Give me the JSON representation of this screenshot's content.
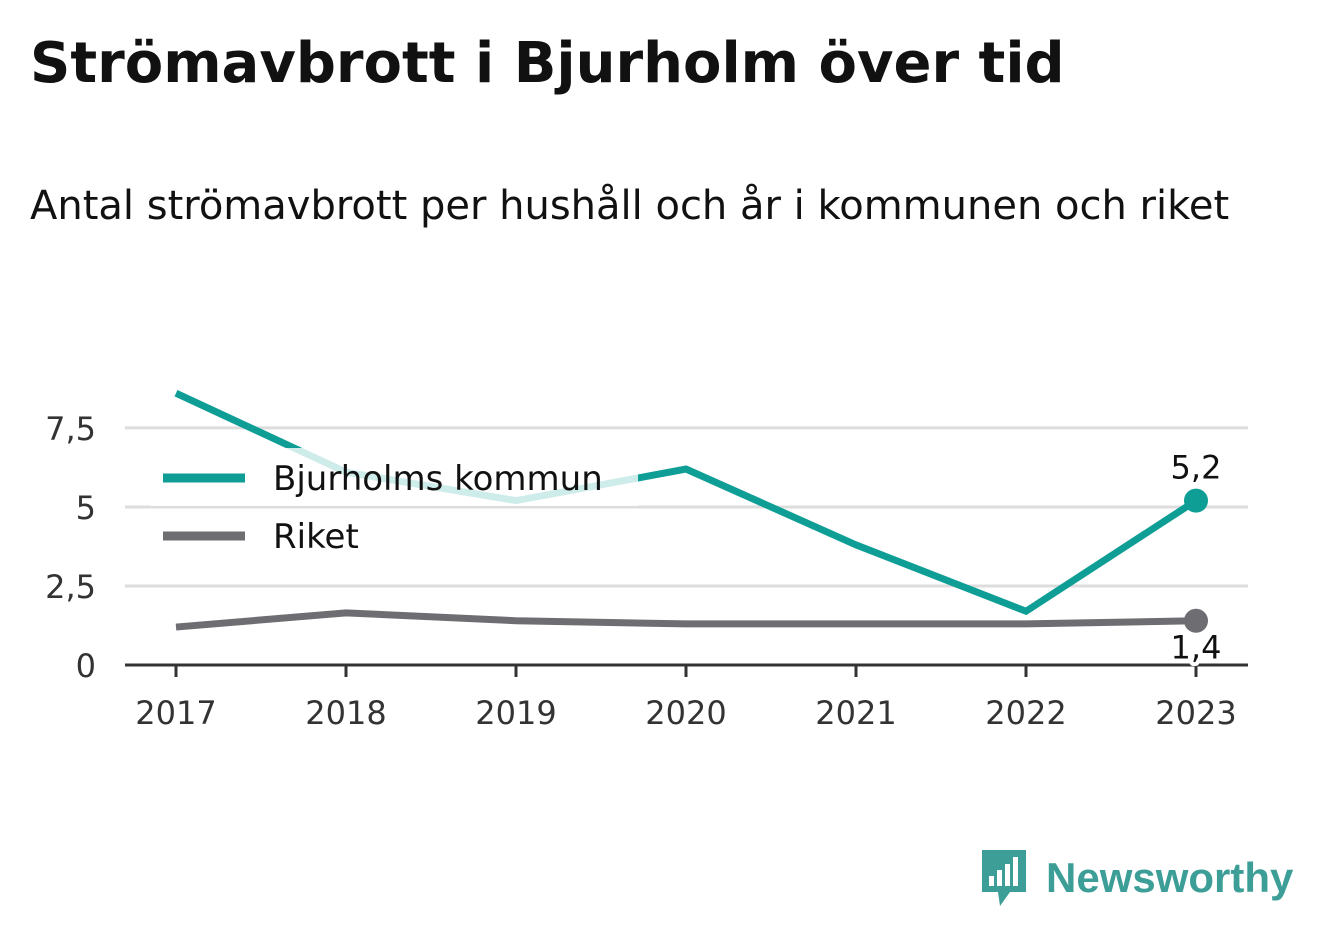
{
  "title": "Strömavbrott i Bjurholm över tid",
  "subtitle": "Antal strömavbrott per hushåll och år i kommunen och riket",
  "brand": "Newsworthy",
  "colors": {
    "bjurholm": "#0e9e96",
    "riket": "#6e6d72",
    "grid": "#dddddd",
    "axis": "#333333",
    "brand": "#3d9e98"
  },
  "chart_data": {
    "type": "line",
    "x": [
      "2017",
      "2018",
      "2019",
      "2020",
      "2021",
      "2022",
      "2023"
    ],
    "y_ticks": [
      "0",
      "2,5",
      "5",
      "7,5"
    ],
    "y_tick_values": [
      0,
      2.5,
      5,
      7.5
    ],
    "ylim": [
      0,
      8.7
    ],
    "grid": true,
    "legend_position": "top-left",
    "series": [
      {
        "name": "Bjurholms kommun",
        "values": [
          8.6,
          6.1,
          5.2,
          6.2,
          3.8,
          1.7,
          5.2
        ],
        "end_label": "5,2"
      },
      {
        "name": "Riket",
        "values": [
          1.2,
          1.65,
          1.4,
          1.3,
          1.3,
          1.3,
          1.4
        ],
        "end_label": "1,4"
      }
    ]
  }
}
